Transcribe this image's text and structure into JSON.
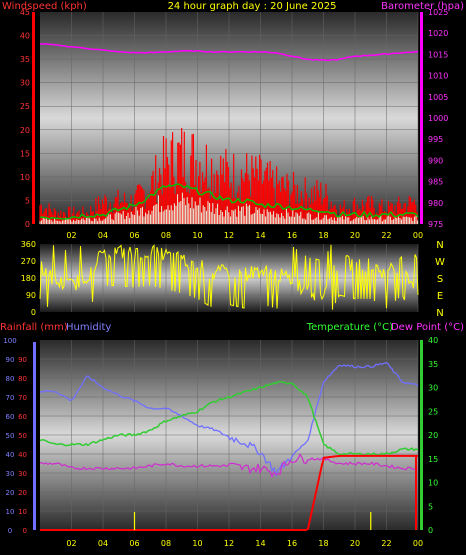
{
  "colors": {
    "windspeed": "#ff0000",
    "gust": "#ff0000",
    "wind_avg": "#00c000",
    "barometer": "#ff00ff",
    "direction": "#ffff00",
    "rainfall": "#ff0000",
    "humidity": "#7070ff",
    "temperature": "#33cc33",
    "dewpoint": "#cc33cc",
    "title": "#ffff00",
    "axis_left_top": "#ff3333",
    "axis_right_top": "#ff33ff",
    "axis_temp": "#33ff33",
    "axis_hum": "#8080ff",
    "axis_rain": "#ff3333"
  },
  "chart_data": [
    {
      "type": "line",
      "title": "24 hour graph day : 20 June 2025",
      "ylabel_left": "Windspeed (kph)",
      "ylabel_right": "Barometer (hpa)",
      "x_ticks": [
        "02",
        "04",
        "06",
        "08",
        "10",
        "12",
        "14",
        "16",
        "18",
        "20",
        "22",
        "00"
      ],
      "y_left_ticks": [
        "45",
        "40",
        "35",
        "30",
        "25",
        "20",
        "15",
        "10",
        "5",
        "0"
      ],
      "y_right_ticks": [
        "1025",
        "1020",
        "1015",
        "1010",
        "1005",
        "1000",
        "995",
        "990",
        "985",
        "980",
        "975"
      ],
      "ylim_left": [
        0,
        45
      ],
      "ylim_right": [
        975,
        1025
      ],
      "hours": [
        0,
        1,
        2,
        3,
        4,
        5,
        6,
        7,
        8,
        9,
        10,
        11,
        12,
        13,
        14,
        15,
        16,
        17,
        18,
        19,
        20,
        21,
        22,
        23,
        24
      ],
      "series": [
        {
          "name": "Barometer (hpa)",
          "axis": "right",
          "values": [
            1017.5,
            1017.2,
            1016.8,
            1016.4,
            1016.0,
            1015.6,
            1015.4,
            1015.4,
            1015.6,
            1015.8,
            1015.8,
            1015.6,
            1015.6,
            1015.6,
            1015.6,
            1015.4,
            1014.6,
            1013.8,
            1013.6,
            1013.8,
            1014.6,
            1014.8,
            1015.1,
            1015.4,
            1015.6
          ]
        },
        {
          "name": "Windspeed (kph)",
          "axis": "left",
          "values": [
            5,
            3,
            3,
            3,
            6,
            6,
            6,
            10,
            16,
            18,
            17,
            15,
            13,
            13,
            12,
            10,
            9,
            8,
            8,
            4,
            5,
            5,
            4,
            5,
            6
          ]
        },
        {
          "name": "Wind average (kph)",
          "axis": "left",
          "values": [
            1.5,
            1.5,
            1.5,
            2,
            2,
            3,
            4,
            6,
            8,
            8,
            7,
            6,
            5,
            5,
            4,
            4,
            3.5,
            3,
            3,
            2,
            2,
            2,
            2,
            2,
            2
          ]
        }
      ]
    },
    {
      "type": "line",
      "ylabel_right": [
        "N",
        "W",
        "S",
        "E",
        "N"
      ],
      "y_left_ticks": [
        "360",
        "270",
        "180",
        "90",
        "0"
      ],
      "ylim": [
        0,
        360
      ],
      "hours": [
        0,
        1,
        2,
        3,
        4,
        5,
        6,
        7,
        8,
        9,
        10,
        11,
        12,
        13,
        14,
        15,
        16,
        17,
        18,
        19,
        20,
        21,
        22,
        23,
        24
      ],
      "series": [
        {
          "name": "Wind direction",
          "values": [
            250,
            160,
            140,
            190,
            320,
            320,
            310,
            320,
            300,
            280,
            250,
            200,
            220,
            200,
            220,
            200,
            170,
            110,
            90,
            270,
            250,
            250,
            200,
            270,
            90
          ]
        }
      ]
    },
    {
      "type": "line",
      "ylabel_left": "Rainfall (mm)",
      "ylabel_left2": "Humidity",
      "ylabel_right": "Temperature (°C)",
      "ylabel_right2": "Dew Point (°C)",
      "x_ticks": [
        "02",
        "04",
        "06",
        "08",
        "10",
        "12",
        "14",
        "16",
        "18",
        "20",
        "22",
        "00"
      ],
      "y_left_ticks": [
        "90",
        "80",
        "70",
        "60",
        "50",
        "40",
        "30",
        "20",
        "10",
        "0"
      ],
      "y_left2_ticks": [
        "100",
        "90",
        "80",
        "70",
        "60",
        "50",
        "40",
        "30",
        "20",
        "10",
        "0"
      ],
      "y_right_ticks": [
        "40",
        "35",
        "30",
        "25",
        "20",
        "15",
        "10",
        "5",
        "0"
      ],
      "ylim_rain": [
        0,
        90
      ],
      "ylim_humidity": [
        0,
        100
      ],
      "ylim_temp": [
        0,
        40
      ],
      "hours": [
        0,
        1,
        2,
        3,
        4,
        5,
        6,
        7,
        8,
        9,
        10,
        11,
        12,
        13,
        14,
        15,
        16,
        17,
        18,
        19,
        20,
        21,
        22,
        23,
        24
      ],
      "series": [
        {
          "name": "Humidity",
          "axis": "left2",
          "values": [
            73,
            73,
            68,
            81,
            75,
            71,
            68,
            64,
            64,
            60,
            55,
            53,
            49,
            46,
            41,
            30,
            39,
            47,
            78,
            87,
            86,
            86,
            88,
            78,
            76
          ]
        },
        {
          "name": "Temperature (°C)",
          "axis": "right",
          "values": [
            19,
            18,
            18,
            18,
            19,
            20,
            20,
            21,
            23,
            24,
            25,
            27,
            28,
            29,
            30,
            31,
            31,
            28,
            18,
            16,
            16,
            16,
            16,
            17,
            17
          ]
        },
        {
          "name": "Dew Point (°C)",
          "axis": "right",
          "values": [
            14,
            14,
            13,
            13,
            13,
            13,
            13,
            13.5,
            14,
            13.5,
            13.5,
            13.5,
            13.5,
            13,
            13,
            12,
            15,
            15,
            15,
            14,
            14,
            14,
            13.5,
            13,
            13
          ]
        },
        {
          "name": "Rainfall (mm)",
          "axis": "left",
          "values": [
            0,
            0,
            0,
            0,
            0,
            0,
            0,
            0,
            0,
            0,
            0,
            0,
            0,
            0,
            0,
            0,
            0,
            0,
            38,
            39,
            39,
            39,
            39,
            39,
            39
          ]
        }
      ]
    }
  ]
}
